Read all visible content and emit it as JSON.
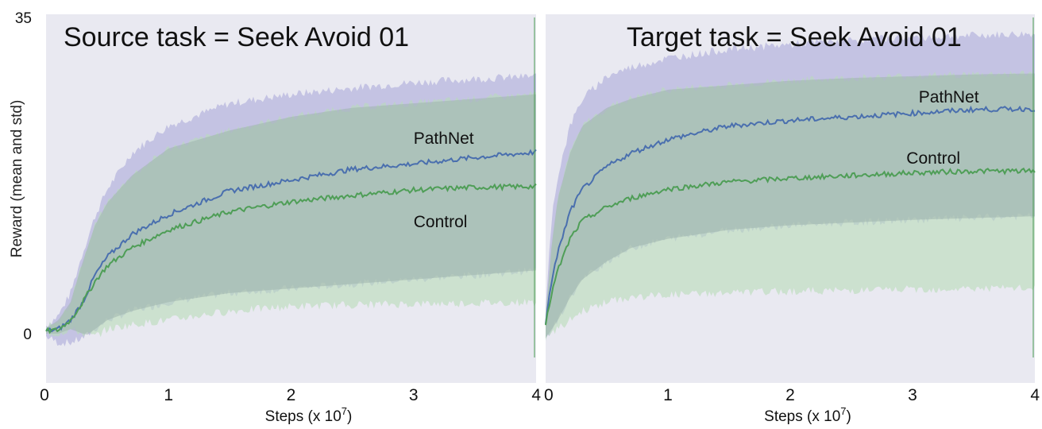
{
  "colors": {
    "panel_bg": "#e9e9f1",
    "pathnet": "#4a6fae",
    "control": "#4f9e57",
    "pathnet_band": "#b7b6de",
    "control_band": "#b9dcb9",
    "overlap_band": "#9fb5ad"
  },
  "ylabel": "Reward (mean and std)",
  "chart_data": [
    {
      "type": "line",
      "title": "Source task = Seek Avoid 01",
      "xlabel": "Steps (x 10",
      "xlabel_exp": "7",
      "xlabel_suffix": ")",
      "ylabel": "Reward (mean and std)",
      "xlim": [
        0,
        4
      ],
      "ylim": [
        -3,
        35
      ],
      "x_ticks": [
        "0",
        "1",
        "2",
        "3",
        "4"
      ],
      "y_ticks": [
        "0",
        "35"
      ],
      "grid": false,
      "x": [
        0,
        0.1,
        0.2,
        0.3,
        0.4,
        0.5,
        0.7,
        1.0,
        1.5,
        2.0,
        2.5,
        3.0,
        3.5,
        4.0
      ],
      "series": [
        {
          "name": "PathNet",
          "mean": [
            0.3,
            0.5,
            1.5,
            3.5,
            6.5,
            8.5,
            11.0,
            13.2,
            15.8,
            17.0,
            18.2,
            18.8,
            19.5,
            20.1
          ],
          "std_low": [
            -0.3,
            -1.0,
            -1.0,
            -0.5,
            0.5,
            1.5,
            2.5,
            3.5,
            4.5,
            5.0,
            5.5,
            6.0,
            6.5,
            7.0
          ],
          "std_high": [
            0.9,
            2.0,
            4.5,
            9.0,
            13.0,
            16.0,
            20.0,
            23.0,
            25.5,
            26.5,
            27.2,
            27.8,
            28.2,
            28.5
          ]
        },
        {
          "name": "Control",
          "mean": [
            0.3,
            0.4,
            1.5,
            3.5,
            5.8,
            7.5,
            9.5,
            11.5,
            13.5,
            14.6,
            15.3,
            15.9,
            16.2,
            16.3
          ],
          "std_low": [
            0.0,
            0.0,
            0.5,
            0.0,
            -0.3,
            0.5,
            1.0,
            1.5,
            2.5,
            3.0,
            3.2,
            3.3,
            3.4,
            3.5
          ],
          "std_high": [
            0.6,
            1.5,
            3.5,
            8.0,
            12.0,
            14.5,
            17.5,
            20.5,
            22.5,
            24.0,
            25.0,
            25.5,
            26.0,
            26.5
          ]
        }
      ],
      "annotations": [
        {
          "text": "PathNet",
          "x": 3.0,
          "y": 21.0
        },
        {
          "text": "Control",
          "x": 3.0,
          "y": 11.8
        }
      ]
    },
    {
      "type": "line",
      "title": "Target task = Seek Avoid 01",
      "xlabel": "Steps (x 10",
      "xlabel_exp": "7",
      "xlabel_suffix": ")",
      "xlim": [
        0,
        4
      ],
      "ylim": [
        -3,
        35
      ],
      "x_ticks": [
        "0",
        "1",
        "2",
        "3",
        "4"
      ],
      "grid": false,
      "x": [
        0,
        0.05,
        0.1,
        0.2,
        0.3,
        0.5,
        0.7,
        1.0,
        1.5,
        2.0,
        2.5,
        3.0,
        3.5,
        4.0
      ],
      "series": [
        {
          "name": "PathNet",
          "mean": [
            1.0,
            6.0,
            9.0,
            13.5,
            16.0,
            18.5,
            20.0,
            21.5,
            23.0,
            23.6,
            24.0,
            24.4,
            24.8,
            24.9
          ],
          "std_low": [
            -0.5,
            0.5,
            1.5,
            4.0,
            6.0,
            8.0,
            9.5,
            10.5,
            11.5,
            12.0,
            12.3,
            12.6,
            12.8,
            13.0
          ],
          "std_high": [
            2.5,
            13.0,
            17.5,
            23.0,
            26.0,
            28.5,
            29.5,
            30.5,
            31.5,
            32.0,
            32.5,
            32.8,
            33.0,
            33.2
          ]
        },
        {
          "name": "Control",
          "mean": [
            1.0,
            4.5,
            7.0,
            10.5,
            12.5,
            14.0,
            15.0,
            16.0,
            16.8,
            17.2,
            17.5,
            17.8,
            18.0,
            18.0
          ],
          "std_low": [
            -0.5,
            0.0,
            0.5,
            1.5,
            2.5,
            3.5,
            4.0,
            4.3,
            4.5,
            4.7,
            4.8,
            4.9,
            5.0,
            5.0
          ],
          "std_high": [
            2.0,
            10.0,
            15.0,
            20.0,
            23.0,
            25.0,
            26.0,
            27.0,
            27.5,
            28.0,
            28.3,
            28.5,
            28.7,
            28.8
          ]
        }
      ],
      "annotations": [
        {
          "text": "PathNet",
          "x": 3.05,
          "y": 25.6
        },
        {
          "text": "Control",
          "x": 2.95,
          "y": 18.8
        }
      ]
    }
  ]
}
